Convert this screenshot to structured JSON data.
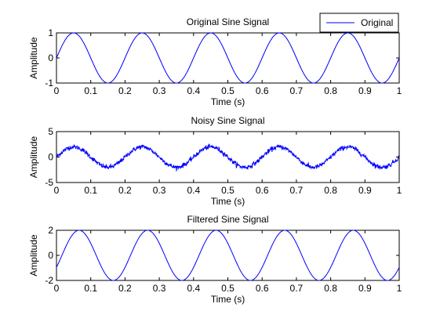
{
  "figure": {
    "background": "#ffffff",
    "line_color": "#0000ff"
  },
  "chart_data": [
    {
      "type": "line",
      "title": "Original Sine Signal",
      "xlabel": "Time (s)",
      "ylabel": "Amplitude",
      "xlim": [
        0,
        1
      ],
      "ylim": [
        -1,
        1
      ],
      "xticks": [
        "0",
        "0.1",
        "0.2",
        "0.3",
        "0.4",
        "0.5",
        "0.6",
        "0.7",
        "0.8",
        "0.9",
        "1"
      ],
      "yticks": [
        "-1",
        "0",
        "1"
      ],
      "grid": false,
      "legend": {
        "entries": [
          "Original"
        ],
        "placement": "top-right"
      },
      "series": [
        {
          "name": "Original",
          "color": "#0000ff",
          "function": "sine",
          "amplitude": 1,
          "frequency_hz": 5,
          "phase_rad": 0,
          "noise_amplitude": 0
        }
      ]
    },
    {
      "type": "line",
      "title": "Noisy Sine Signal",
      "xlabel": "Time (s)",
      "ylabel": "Amplitude",
      "xlim": [
        0,
        1
      ],
      "ylim": [
        -5,
        5
      ],
      "xticks": [
        "0",
        "0.1",
        "0.2",
        "0.3",
        "0.4",
        "0.5",
        "0.6",
        "0.7",
        "0.8",
        "0.9",
        "1"
      ],
      "yticks": [
        "-5",
        "0",
        "5"
      ],
      "grid": false,
      "series": [
        {
          "color": "#0000ff",
          "function": "sine",
          "amplitude": 2,
          "frequency_hz": 5,
          "phase_rad": 0,
          "noise_amplitude": 0.5
        }
      ]
    },
    {
      "type": "line",
      "title": "Filtered Sine Signal",
      "xlabel": "Time (s)",
      "ylabel": "Amplitude",
      "xlim": [
        0,
        1
      ],
      "ylim": [
        -2,
        2
      ],
      "xticks": [
        "0",
        "0.1",
        "0.2",
        "0.3",
        "0.4",
        "0.5",
        "0.6",
        "0.7",
        "0.8",
        "0.9",
        "1"
      ],
      "yticks": [
        "-2",
        "0",
        "2"
      ],
      "grid": false,
      "series": [
        {
          "color": "#0000ff",
          "function": "sine",
          "amplitude": 2,
          "frequency_hz": 5,
          "phase_rad": -0.5,
          "noise_amplitude": 0
        }
      ]
    }
  ]
}
